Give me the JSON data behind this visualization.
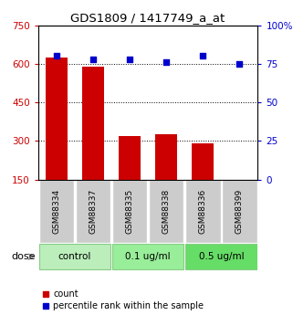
{
  "title": "GDS1809 / 1417749_a_at",
  "samples": [
    "GSM88334",
    "GSM88337",
    "GSM88335",
    "GSM88338",
    "GSM88336",
    "GSM88399"
  ],
  "counts": [
    625,
    590,
    320,
    325,
    290,
    150
  ],
  "percentile_ranks": [
    80,
    78,
    78,
    76,
    80,
    75
  ],
  "ylim_left": [
    150,
    750
  ],
  "ylim_right": [
    0,
    100
  ],
  "yticks_left": [
    150,
    300,
    450,
    600,
    750
  ],
  "yticks_right": [
    0,
    25,
    50,
    75,
    100
  ],
  "ytick_labels_right": [
    "0",
    "25",
    "50",
    "75",
    "100%"
  ],
  "bar_color": "#cc0000",
  "scatter_color": "#0000cc",
  "grid_color": "#000000",
  "dose_groups": [
    {
      "label": "control",
      "indices": [
        0,
        1
      ],
      "color": "#bbeebb"
    },
    {
      "label": "0.1 ug/ml",
      "indices": [
        2,
        3
      ],
      "color": "#99ee99"
    },
    {
      "label": "0.5 ug/ml",
      "indices": [
        4,
        5
      ],
      "color": "#66dd66"
    }
  ],
  "dose_label": "dose",
  "legend_count_label": "count",
  "legend_pct_label": "percentile rank within the sample",
  "bar_width": 0.6,
  "sample_bg": "#cccccc"
}
